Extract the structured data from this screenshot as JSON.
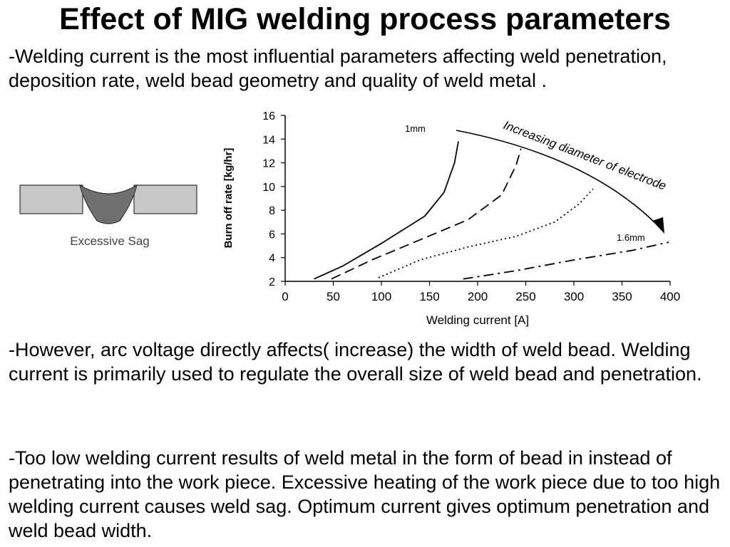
{
  "slide": {
    "title": "Effect of MIG welding process parameters",
    "paragraphs": [
      "-Welding current is the most influential parameters affecting weld penetration, deposition rate, weld bead geometry and quality of weld metal .",
      "-However, arc voltage directly affects( increase)  the width of weld bead. Welding current is primarily used to regulate the overall size of weld bead and penetration.",
      "-Too low welding current results  of weld metal in the form of bead in instead of penetrating into the work piece. Excessive heating of the work piece due to too high welding current causes weld sag. Optimum current gives optimum penetration and weld bead width."
    ]
  },
  "figure": {
    "caption": "Excessive Sag",
    "colors": {
      "plate": "#c8c8c8",
      "bead": "#707070",
      "outline": "#333333"
    }
  },
  "chart_data": {
    "type": "line",
    "xlabel": "Welding current [A]",
    "ylabel": "Burn off rate [kg/hr]",
    "xlim": [
      0,
      400
    ],
    "ylim": [
      2,
      16
    ],
    "xticks": [
      "0",
      "50",
      "100",
      "150",
      "200",
      "250",
      "300",
      "350",
      "400"
    ],
    "yticks": [
      "2",
      "4",
      "6",
      "8",
      "10",
      "12",
      "14",
      "16"
    ],
    "grid": false,
    "annotations": {
      "small_label": "1mm",
      "large_label": "1.6mm",
      "arrow_label": "Increasing diameter of electrode"
    },
    "series": [
      {
        "style": "solid",
        "x": [
          30,
          60,
          100,
          145,
          165,
          176,
          180
        ],
        "y": [
          2.2,
          3.3,
          5.2,
          7.5,
          9.5,
          12.0,
          13.8
        ]
      },
      {
        "style": "dashed",
        "x": [
          48,
          90,
          140,
          190,
          225,
          240,
          245
        ],
        "y": [
          2.2,
          3.8,
          5.5,
          7.2,
          9.3,
          11.8,
          13.2
        ]
      },
      {
        "style": "dotted",
        "x": [
          97,
          140,
          190,
          240,
          280,
          305,
          320
        ],
        "y": [
          2.3,
          3.8,
          4.9,
          5.8,
          7.0,
          8.5,
          9.8
        ]
      },
      {
        "style": "dashdot",
        "x": [
          185,
          240,
          300,
          360,
          405
        ],
        "y": [
          2.2,
          2.9,
          3.8,
          4.6,
          5.3
        ]
      }
    ]
  }
}
